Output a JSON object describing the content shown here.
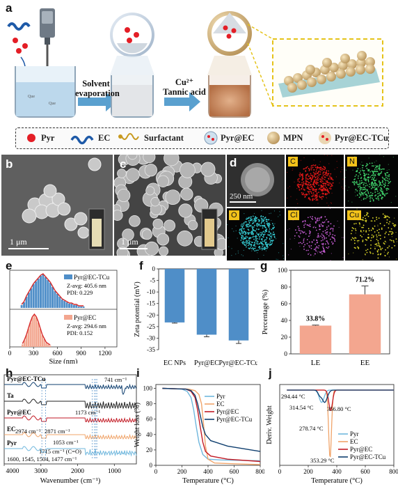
{
  "panels": {
    "a": "a",
    "b": "b",
    "c": "c",
    "d": "d",
    "e": "e",
    "f": "f",
    "g": "g",
    "h": "h",
    "i": "i",
    "j": "j"
  },
  "schematic": {
    "step1_line1": "Solvent",
    "step1_line2": "evaporation",
    "step2_line1": "Cu²⁺",
    "step2_line2": "Tannic acid",
    "legend": [
      {
        "label": "Pyr",
        "icon": "red-dot-icon"
      },
      {
        "label": "EC",
        "icon": "blue-chain-icon"
      },
      {
        "label": "Surfactant",
        "icon": "surfactant-icon"
      },
      {
        "label": "Pyr@EC",
        "icon": "pyr-ec-particle-icon"
      },
      {
        "label": "MPN",
        "icon": "mpn-sphere-icon"
      },
      {
        "label": "Pyr@EC-TCu",
        "icon": "pyr-ec-tcu-particle-icon"
      }
    ]
  },
  "sem": {
    "b_scale": "1 μm",
    "c_scale": "1 μm",
    "d_scale": "250 nm",
    "map_labels": [
      "C",
      "N",
      "O",
      "Cl",
      "Cu"
    ]
  },
  "chart_data": [
    {
      "id": "e",
      "type": "bar",
      "xlabel": "Size (nm)",
      "x_ticks": [
        "0",
        "300",
        "600",
        "900",
        "1200"
      ],
      "xlim": [
        0,
        1350
      ],
      "series": [
        {
          "name": "Pyr@EC-TCu",
          "annotation": [
            "Z-avg: 405.6 nm",
            "PDI: 0.229"
          ],
          "bins": [
            150,
            180,
            210,
            240,
            270,
            300,
            330,
            360,
            390,
            420,
            450,
            480,
            510,
            540,
            570,
            600,
            630,
            660,
            690,
            720,
            750,
            780,
            810,
            840,
            870,
            900,
            930
          ],
          "values": [
            2,
            4,
            8,
            11,
            14,
            17,
            19,
            21,
            23,
            24,
            22,
            20,
            18,
            15,
            12,
            10,
            8,
            6,
            5,
            4,
            3,
            3,
            2,
            2,
            1,
            1,
            1
          ]
        },
        {
          "name": "Pyr@EC",
          "annotation": [
            "Z-avg: 294.6 nm",
            "PDI: 0.152"
          ],
          "bins": [
            160,
            185,
            210,
            235,
            260,
            285,
            310,
            335,
            360,
            385,
            410,
            435,
            460,
            485,
            510
          ],
          "values": [
            2,
            5,
            9,
            14,
            19,
            23,
            25,
            23,
            19,
            14,
            9,
            6,
            3,
            2,
            1
          ]
        }
      ]
    },
    {
      "id": "f",
      "type": "bar",
      "ylabel": "Zeta potential (mV)",
      "categories": [
        "EC NPs",
        "Pyr@EC",
        "Pyr@EC-TCu"
      ],
      "values": [
        -23.2,
        -28.5,
        -31.0
      ],
      "errors": [
        0.3,
        0.9,
        1.3
      ],
      "ylim": [
        -35,
        0
      ],
      "y_ticks": [
        "0",
        "-5",
        "-10",
        "-15",
        "-20",
        "-25",
        "-30",
        "-35"
      ]
    },
    {
      "id": "g",
      "type": "bar",
      "ylabel": "Percentage (%)",
      "categories": [
        "LE",
        "EE"
      ],
      "values": [
        33.8,
        71.2
      ],
      "errors": [
        0.6,
        10.0
      ],
      "value_labels": [
        "33.8%",
        "71.2%"
      ],
      "ylim": [
        0,
        100
      ],
      "y_ticks": [
        "0",
        "20",
        "40",
        "60",
        "80",
        "100"
      ]
    },
    {
      "id": "h",
      "type": "line",
      "xlabel": "Wavenumber (cm⁻¹)",
      "x_ticks": [
        "4000",
        "3000",
        "2000",
        "1000"
      ],
      "xlim": [
        4000,
        400
      ],
      "series": [
        {
          "name": "Pyr@EC-TCu"
        },
        {
          "name": "Ta"
        },
        {
          "name": "Pyr@EC"
        },
        {
          "name": "EC"
        },
        {
          "name": "Pyr"
        }
      ],
      "annotations": [
        "741 cm⁻¹",
        "1173 cm⁻¹",
        "2974 cm⁻¹",
        "2871 cm⁻¹",
        "1053 cm⁻¹",
        "1715 cm⁻¹ (C=O)",
        "1600, 1545, 1504, 1477 cm⁻¹"
      ]
    },
    {
      "id": "i",
      "type": "line",
      "xlabel": "Temperature (°C)",
      "ylabel": "Weight loss (%)",
      "x_ticks": [
        "0",
        "200",
        "400",
        "600",
        "800"
      ],
      "y_ticks": [
        "0",
        "20",
        "40",
        "60",
        "80",
        "100"
      ],
      "xlim": [
        0,
        800
      ],
      "ylim": [
        0,
        105
      ],
      "series": [
        {
          "name": "Pyr",
          "color": "#6fb7dd",
          "x": [
            50,
            200,
            240,
            270,
            290,
            310,
            330,
            360,
            400,
            500,
            800
          ],
          "y": [
            100,
            99,
            96,
            88,
            72,
            50,
            30,
            14,
            8,
            7,
            6
          ]
        },
        {
          "name": "EC",
          "color": "#f0a46a",
          "x": [
            50,
            250,
            300,
            330,
            350,
            365,
            380,
            400,
            450,
            600,
            800
          ],
          "y": [
            100,
            99,
            97,
            92,
            80,
            55,
            25,
            8,
            3,
            2,
            1
          ]
        },
        {
          "name": "Pyr@EC",
          "color": "#c21a24",
          "x": [
            50,
            230,
            270,
            300,
            320,
            340,
            360,
            380,
            420,
            550,
            800
          ],
          "y": [
            100,
            99,
            96,
            88,
            72,
            50,
            30,
            18,
            12,
            8,
            5
          ]
        },
        {
          "name": "Pyr@EC-TCu",
          "color": "#0f3f6f",
          "x": [
            50,
            230,
            270,
            300,
            320,
            340,
            360,
            380,
            420,
            550,
            800
          ],
          "y": [
            100,
            99,
            97,
            91,
            80,
            65,
            50,
            40,
            32,
            25,
            18
          ]
        }
      ]
    },
    {
      "id": "j",
      "type": "line",
      "ylabel": "Deriv. Weight",
      "xlabel": "Temperature (°C)",
      "x_ticks": [
        "0",
        "200",
        "400",
        "600",
        "800"
      ],
      "xlim": [
        0,
        800
      ],
      "series": [
        {
          "name": "Pyr",
          "color": "#6fb7dd"
        },
        {
          "name": "EC",
          "color": "#f0a46a"
        },
        {
          "name": "Pyr@EC",
          "color": "#c21a24"
        },
        {
          "name": "Pyr@EC-TCu",
          "color": "#0f3f6f"
        }
      ],
      "annotations": [
        "294.44 °C",
        "314.54 °C",
        "356.80 °C",
        "278.74 °C",
        "353.29 °C"
      ]
    }
  ],
  "colors": {
    "blue_bar": "#4f8ec8",
    "red_bar": "#f3a68f",
    "fit_red": "#d62a2a",
    "mpn": "#dcbf86"
  }
}
